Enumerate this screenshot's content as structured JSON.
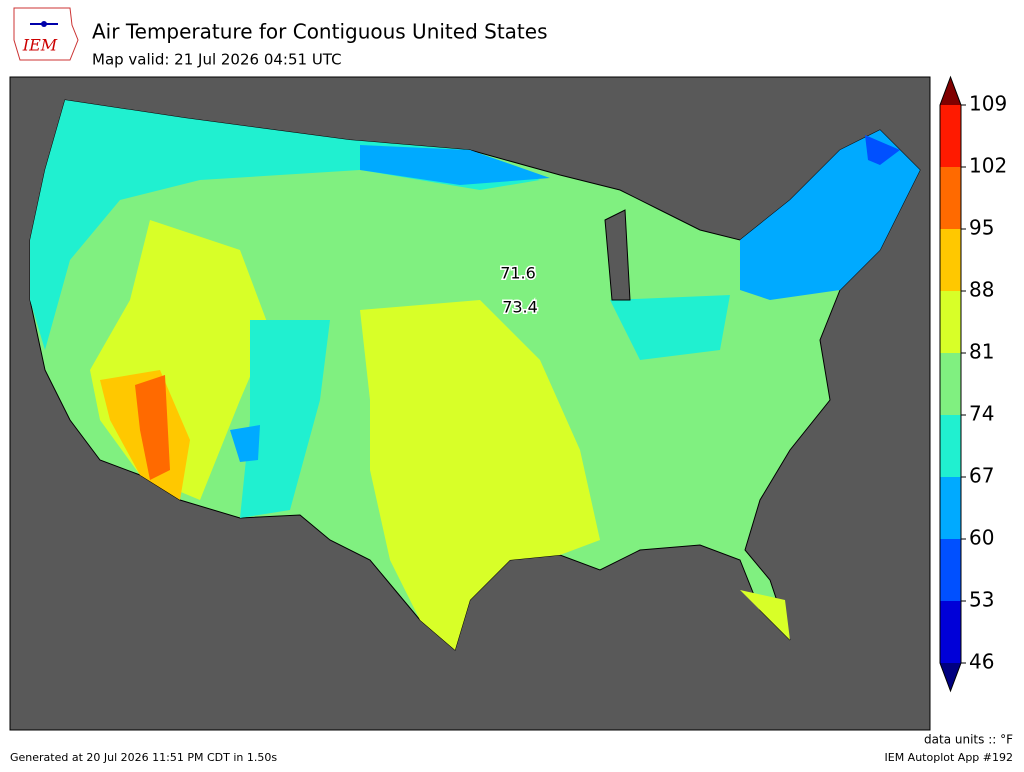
{
  "header": {
    "title": "Air Temperature for Contiguous United States",
    "subtitle": "Map valid: 21 Jul 2026 04:51 UTC",
    "logo": "IEM"
  },
  "colorbar": {
    "levels": [
      46,
      53,
      60,
      67,
      74,
      81,
      88,
      95,
      102,
      109
    ],
    "colors": [
      "#0000d8",
      "#0050ff",
      "#00aaff",
      "#20f0d0",
      "#80f080",
      "#d8ff28",
      "#ffc800",
      "#ff6a00",
      "#ff1a00"
    ],
    "under_color": "#000080",
    "over_color": "#800000",
    "units": "data units :: °F"
  },
  "map_labels": [
    71.6,
    73.4
  ],
  "footer": {
    "left": "Generated at 20 Jul 2026 11:51 PM CDT in 1.50s",
    "right": "IEM Autoplot App #192"
  }
}
